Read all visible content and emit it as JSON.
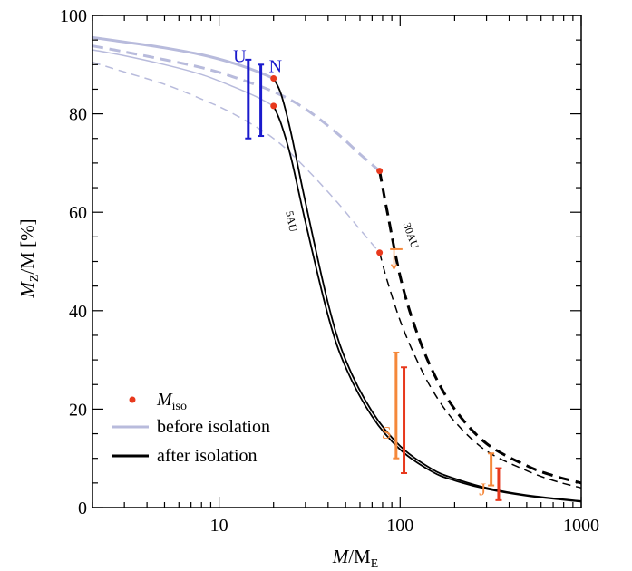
{
  "chart_data": {
    "type": "line",
    "xlabel_main": "M",
    "xlabel_rest": "/M",
    "xlabel_sub": "E",
    "ylabel_main": "M",
    "ylabel_sub": "Z",
    "ylabel_rest": "/M [%]",
    "x_scale": "log",
    "xlim": [
      2,
      1000
    ],
    "ylim": [
      0,
      100
    ],
    "x_ticks": [
      10,
      100,
      1000
    ],
    "x_tick_labels": [
      "10",
      "100",
      "1000"
    ],
    "y_ticks": [
      0,
      20,
      40,
      60,
      80,
      100
    ],
    "y_tick_labels": [
      "0",
      "20",
      "40",
      "60",
      "80",
      "100"
    ],
    "grid": false,
    "legend_position": "bottom-left",
    "legend": {
      "iso_main": "M",
      "iso_sub": "iso",
      "before": "before isolation",
      "after": "after isolation"
    },
    "colors": {
      "before": "#b8bbdc",
      "after": "#000000",
      "iso": "#e8391d",
      "uranus_neptune": "#1a1acc",
      "saturn": "#f5883a",
      "jupiter": "#e8391d"
    },
    "series": [
      {
        "role": "before-solid-thick",
        "style": "solid",
        "width": 3,
        "x": [
          2,
          3,
          5,
          8,
          12,
          16,
          20
        ],
        "y": [
          95.5,
          94.6,
          93.4,
          92.0,
          90.3,
          88.7,
          87.2
        ]
      },
      {
        "role": "before-solid-thin",
        "style": "solid",
        "width": 1.5,
        "x": [
          2,
          3,
          5,
          8,
          12,
          16,
          20
        ],
        "y": [
          93.0,
          91.8,
          90.0,
          88.0,
          85.5,
          83.5,
          81.6
        ]
      },
      {
        "role": "before-dashed-thick",
        "style": "dashed",
        "width": 3,
        "x": [
          2,
          3,
          5,
          8,
          12,
          20,
          30,
          45,
          60,
          77
        ],
        "y": [
          93.8,
          92.6,
          91.0,
          89.4,
          87.5,
          84.5,
          81.0,
          76.0,
          71.8,
          68.4
        ]
      },
      {
        "role": "before-dashed-thin",
        "style": "dashed",
        "width": 1.5,
        "x": [
          2,
          3,
          5,
          8,
          12,
          20,
          30,
          45,
          60,
          77
        ],
        "y": [
          90.5,
          88.5,
          86.0,
          83.0,
          80.0,
          75.0,
          69.0,
          62.0,
          56.5,
          51.8
        ]
      },
      {
        "role": "after-5AU-a",
        "style": "solid",
        "width": 1.8,
        "x": [
          20,
          22,
          25,
          30,
          40,
          50,
          70,
          100,
          150,
          200,
          300,
          500,
          1000
        ],
        "y": [
          87.2,
          84.0,
          76.0,
          62.0,
          41.5,
          30.0,
          19.5,
          12.5,
          7.8,
          5.9,
          4.0,
          2.5,
          1.3
        ]
      },
      {
        "role": "after-5AU-b",
        "style": "solid",
        "width": 1.8,
        "x": [
          20,
          22,
          25,
          30,
          40,
          50,
          70,
          100,
          150,
          200,
          300,
          500,
          1000
        ],
        "y": [
          81.6,
          78.0,
          71.0,
          58.0,
          39.0,
          28.5,
          18.5,
          11.8,
          7.3,
          5.5,
          3.8,
          2.4,
          1.2
        ]
      },
      {
        "role": "after-30AU-thick",
        "style": "dashed",
        "width": 3,
        "x": [
          77,
          85,
          100,
          120,
          150,
          200,
          300,
          500,
          700,
          1000
        ],
        "y": [
          68.4,
          60.0,
          47.0,
          37.0,
          28.0,
          20.0,
          13.0,
          8.5,
          6.5,
          5.0
        ]
      },
      {
        "role": "after-30AU-thin",
        "style": "dashed",
        "width": 1.5,
        "x": [
          77,
          85,
          100,
          120,
          150,
          200,
          300,
          500,
          700,
          1000
        ],
        "y": [
          51.8,
          46.0,
          38.0,
          31.0,
          24.0,
          17.5,
          11.5,
          7.5,
          5.5,
          4.0
        ]
      }
    ],
    "iso_points": [
      {
        "x": 20,
        "y": 87.2
      },
      {
        "x": 20,
        "y": 81.6
      },
      {
        "x": 77,
        "y": 68.4
      },
      {
        "x": 77,
        "y": 51.8
      }
    ],
    "planets": [
      {
        "name": "U",
        "color": "#1a1acc",
        "bars": [
          {
            "x": 14.5,
            "low": 75,
            "high": 91
          }
        ],
        "label_pos": {
          "x": 13.0,
          "y": 90.5
        }
      },
      {
        "name": "N",
        "color": "#1a1acc",
        "bars": [
          {
            "x": 17.0,
            "low": 75.5,
            "high": 90
          }
        ],
        "label_pos": {
          "x": 20.5,
          "y": 88.5
        }
      },
      {
        "name": "S",
        "color": "#f5883a",
        "bars": [
          {
            "x": 95,
            "low": 10,
            "high": 31.5
          }
        ],
        "label_pos": {
          "x": 84,
          "y": 14
        }
      },
      {
        "name": "",
        "color": "#e8391d",
        "bars": [
          {
            "x": 105,
            "low": 7,
            "high": 28.5
          }
        ],
        "label_pos": null
      },
      {
        "name": "J",
        "color": "#f5883a",
        "bars": [
          {
            "x": 318,
            "low": 4.5,
            "high": 11
          }
        ],
        "label_pos": {
          "x": 285,
          "y": 2.5
        }
      },
      {
        "name": "",
        "color": "#e8391d",
        "bars": [
          {
            "x": 350,
            "low": 1.5,
            "high": 8
          }
        ],
        "label_pos": null
      }
    ],
    "upper_limit_marker": {
      "x1": 88,
      "x2": 103,
      "y": 52.5,
      "arrow_to": 48.5,
      "color": "#f5883a"
    },
    "curve_labels": [
      {
        "text": "5AU",
        "x": 24,
        "y": 58,
        "angle": 79
      },
      {
        "text": "30AU",
        "x": 110,
        "y": 55,
        "angle": 70
      }
    ]
  }
}
